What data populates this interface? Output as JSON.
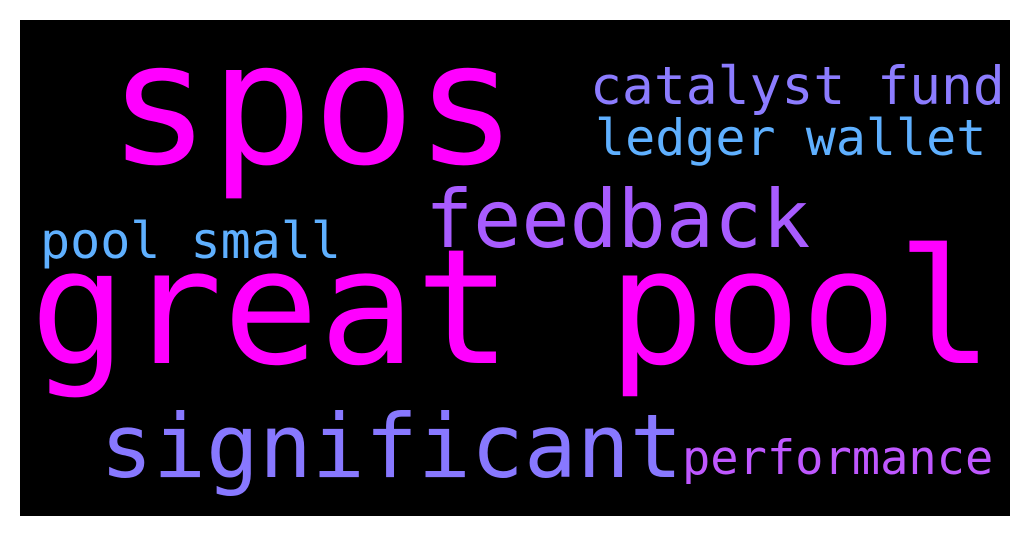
{
  "word_cloud": {
    "background_color": "#000000",
    "words": [
      {
        "id": "spos",
        "text": "spos",
        "color": "#ff00ff"
      },
      {
        "id": "great-pool",
        "text": "great pool",
        "color": "#ff00ff"
      },
      {
        "id": "catalyst",
        "text": "catalyst fund",
        "color": "#8c7cff"
      },
      {
        "id": "ledger",
        "text": "ledger wallet",
        "color": "#5fb0ff"
      },
      {
        "id": "feedback",
        "text": "feedback",
        "color": "#a85cff"
      },
      {
        "id": "pool-small",
        "text": "pool small",
        "color": "#5fb0ff"
      },
      {
        "id": "significant",
        "text": "significant",
        "color": "#8878ff"
      },
      {
        "id": "performance",
        "text": "performance",
        "color": "#bf58ff"
      }
    ]
  }
}
